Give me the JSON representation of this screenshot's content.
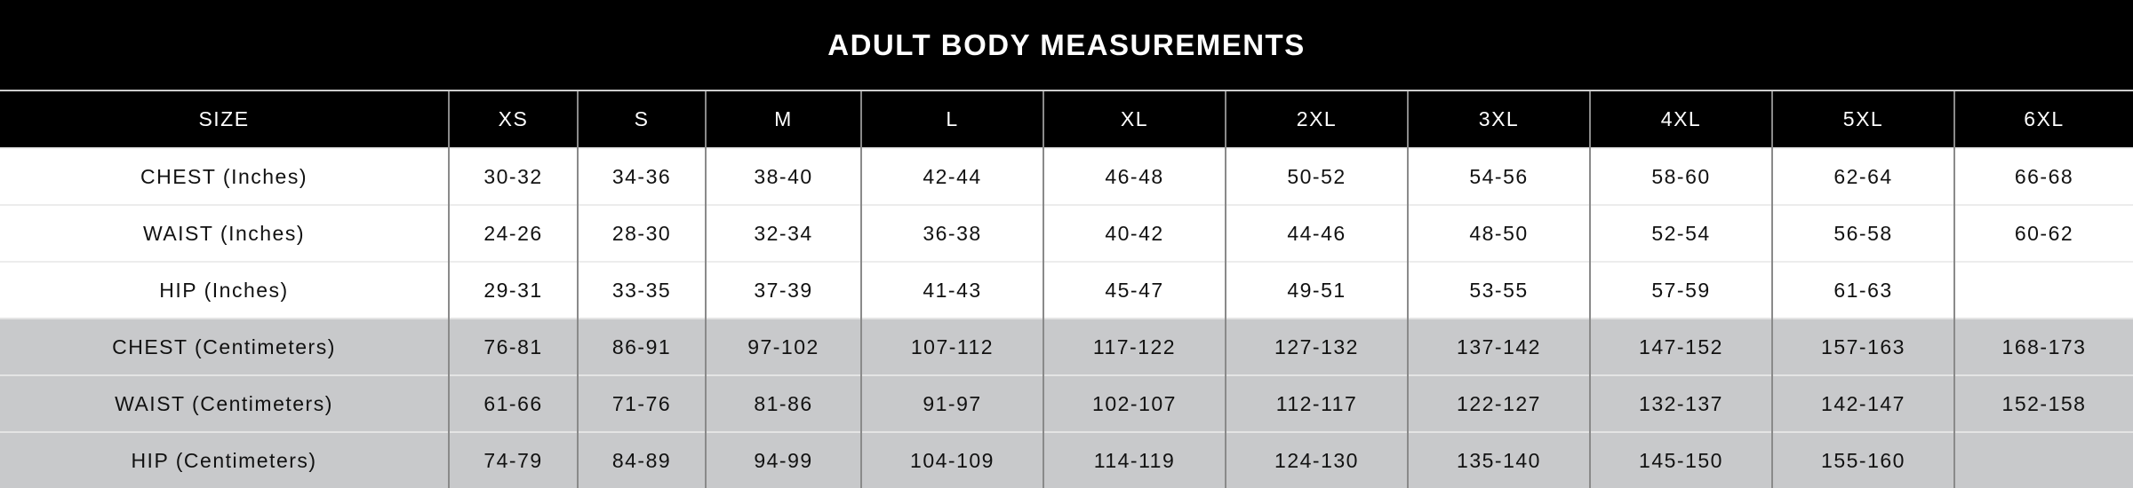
{
  "title": "ADULT BODY MEASUREMENTS",
  "colors": {
    "header_bg": "#000000",
    "inch_row_bg": "#ffffff",
    "cm_row_bg": "#c8c9cb"
  },
  "columns": [
    "SIZE",
    "XS",
    "S",
    "M",
    "L",
    "XL",
    "2XL",
    "3XL",
    "4XL",
    "5XL",
    "6XL"
  ],
  "rows": [
    {
      "label": "CHEST (Inches)",
      "unit": "in",
      "values": [
        "30-32",
        "34-36",
        "38-40",
        "42-44",
        "46-48",
        "50-52",
        "54-56",
        "58-60",
        "62-64",
        "66-68"
      ]
    },
    {
      "label": "WAIST (Inches)",
      "unit": "in",
      "values": [
        "24-26",
        "28-30",
        "32-34",
        "36-38",
        "40-42",
        "44-46",
        "48-50",
        "52-54",
        "56-58",
        "60-62"
      ]
    },
    {
      "label": "HIP (Inches)",
      "unit": "in",
      "values": [
        "29-31",
        "33-35",
        "37-39",
        "41-43",
        "45-47",
        "49-51",
        "53-55",
        "57-59",
        "61-63",
        ""
      ]
    },
    {
      "label": "CHEST (Centimeters)",
      "unit": "cm",
      "values": [
        "76-81",
        "86-91",
        "97-102",
        "107-112",
        "117-122",
        "127-132",
        "137-142",
        "147-152",
        "157-163",
        "168-173"
      ]
    },
    {
      "label": "WAIST (Centimeters)",
      "unit": "cm",
      "values": [
        "61-66",
        "71-76",
        "81-86",
        "91-97",
        "102-107",
        "112-117",
        "122-127",
        "132-137",
        "142-147",
        "152-158"
      ]
    },
    {
      "label": "HIP (Centimeters)",
      "unit": "cm",
      "values": [
        "74-79",
        "84-89",
        "94-99",
        "104-109",
        "114-119",
        "124-130",
        "135-140",
        "145-150",
        "155-160",
        ""
      ]
    }
  ]
}
